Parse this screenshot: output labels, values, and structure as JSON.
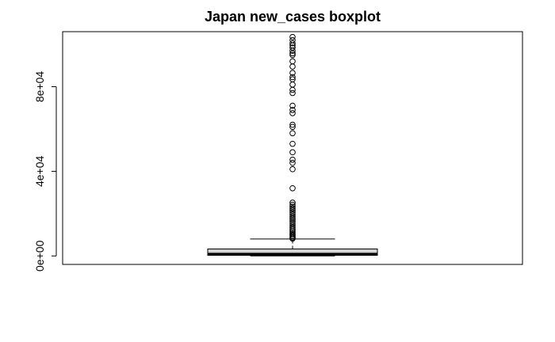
{
  "chart_data": {
    "type": "boxplot",
    "title": "Japan new_cases boxplot",
    "xlabel": "",
    "ylabel": "",
    "ylim": [
      -4000,
      106000
    ],
    "y_ticks": [
      0,
      40000,
      80000
    ],
    "y_tick_labels": [
      "0e+00",
      "4e+04",
      "8e+04"
    ],
    "grid": false,
    "legend": "none",
    "box": {
      "min": 0,
      "q1": 300,
      "median": 900,
      "q3": 3300,
      "whisker_high": 8000,
      "box_fill": "#d3d3d3"
    },
    "outliers": [
      8200,
      8700,
      9300,
      9900,
      10500,
      11200,
      11900,
      12600,
      13400,
      14300,
      15200,
      16100,
      17000,
      17900,
      18800,
      19700,
      20600,
      21500,
      22400,
      23300,
      24200,
      25200,
      32000,
      41000,
      44000,
      45500,
      49000,
      53000,
      58000,
      61000,
      62000,
      67500,
      69000,
      71000,
      77000,
      78500,
      81000,
      83500,
      84500,
      86500,
      89500,
      92000,
      95000,
      95800,
      97000,
      98500,
      99500,
      100500,
      102000,
      103500
    ]
  }
}
